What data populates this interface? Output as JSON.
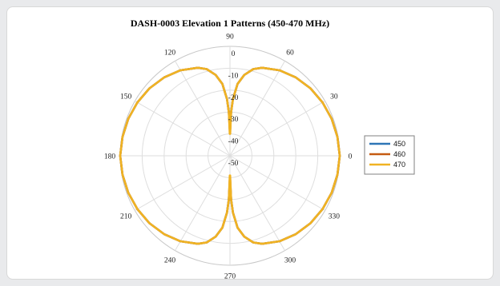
{
  "chart_data": {
    "type": "polar-line",
    "title": "DASH-0003 Elevation 1 Patterns (450-470 MHz)",
    "angle_ticks": [
      "0",
      "30",
      "60",
      "90",
      "120",
      "150",
      "180",
      "210",
      "240",
      "270",
      "300",
      "330"
    ],
    "radial_ticks": [
      "0",
      "-10",
      "-20",
      "-30",
      "-40",
      "-50"
    ],
    "rlim": [
      -50,
      0
    ],
    "grid": true,
    "legend_position": "right",
    "series": [
      {
        "name": "450",
        "color": "#2e75b6",
        "points": [
          [
            0,
            0
          ],
          [
            10,
            -0.3
          ],
          [
            20,
            -0.7
          ],
          [
            30,
            -1.3
          ],
          [
            40,
            -2.1
          ],
          [
            50,
            -3.3
          ],
          [
            60,
            -4.9
          ],
          [
            70,
            -7.2
          ],
          [
            75,
            -9
          ],
          [
            80,
            -12.5
          ],
          [
            84,
            -17
          ],
          [
            87,
            -24
          ],
          [
            88.5,
            -30
          ],
          [
            89.5,
            -36
          ],
          [
            90.5,
            -36
          ],
          [
            91.5,
            -30
          ],
          [
            93,
            -24
          ],
          [
            96,
            -17
          ],
          [
            100,
            -12.5
          ],
          [
            105,
            -9
          ],
          [
            110,
            -7.2
          ],
          [
            120,
            -4.9
          ],
          [
            130,
            -3.3
          ],
          [
            140,
            -2.1
          ],
          [
            150,
            -1.3
          ],
          [
            160,
            -0.7
          ],
          [
            170,
            -0.3
          ],
          [
            180,
            0
          ],
          [
            190,
            -0.3
          ],
          [
            200,
            -0.7
          ],
          [
            210,
            -1.3
          ],
          [
            220,
            -2.1
          ],
          [
            230,
            -3.3
          ],
          [
            240,
            -4.9
          ],
          [
            250,
            -7.2
          ],
          [
            255,
            -9
          ],
          [
            260,
            -12.5
          ],
          [
            264,
            -17
          ],
          [
            267,
            -24
          ],
          [
            268.5,
            -30
          ],
          [
            269.5,
            -37
          ],
          [
            270.5,
            -37
          ],
          [
            271.5,
            -30
          ],
          [
            273,
            -24
          ],
          [
            276,
            -17
          ],
          [
            280,
            -12.5
          ],
          [
            285,
            -9
          ],
          [
            290,
            -7.2
          ],
          [
            300,
            -4.9
          ],
          [
            310,
            -3.3
          ],
          [
            320,
            -2.1
          ],
          [
            330,
            -1.3
          ],
          [
            340,
            -0.7
          ],
          [
            350,
            -0.3
          ],
          [
            360,
            0
          ]
        ]
      },
      {
        "name": "460",
        "color": "#c55a11",
        "points": [
          [
            0,
            0
          ],
          [
            10,
            -0.3
          ],
          [
            20,
            -0.7
          ],
          [
            30,
            -1.3
          ],
          [
            40,
            -2.1
          ],
          [
            50,
            -3.3
          ],
          [
            60,
            -4.9
          ],
          [
            70,
            -7.2
          ],
          [
            75,
            -9
          ],
          [
            80,
            -12.5
          ],
          [
            84,
            -17
          ],
          [
            87,
            -24
          ],
          [
            88.5,
            -30
          ],
          [
            89.5,
            -38
          ],
          [
            90.5,
            -38
          ],
          [
            91.5,
            -30
          ],
          [
            93,
            -24
          ],
          [
            96,
            -17
          ],
          [
            100,
            -12.5
          ],
          [
            105,
            -9
          ],
          [
            110,
            -7.2
          ],
          [
            120,
            -4.9
          ],
          [
            130,
            -3.3
          ],
          [
            140,
            -2.1
          ],
          [
            150,
            -1.3
          ],
          [
            160,
            -0.7
          ],
          [
            170,
            -0.3
          ],
          [
            180,
            0
          ],
          [
            190,
            -0.3
          ],
          [
            200,
            -0.7
          ],
          [
            210,
            -1.3
          ],
          [
            220,
            -2.1
          ],
          [
            230,
            -3.3
          ],
          [
            240,
            -4.9
          ],
          [
            250,
            -7.2
          ],
          [
            255,
            -9
          ],
          [
            260,
            -12.5
          ],
          [
            264,
            -17
          ],
          [
            267,
            -24
          ],
          [
            268.5,
            -30
          ],
          [
            269.5,
            -39
          ],
          [
            270.5,
            -39
          ],
          [
            271.5,
            -30
          ],
          [
            273,
            -24
          ],
          [
            276,
            -17
          ],
          [
            280,
            -12.5
          ],
          [
            285,
            -9
          ],
          [
            290,
            -7.2
          ],
          [
            300,
            -4.9
          ],
          [
            310,
            -3.3
          ],
          [
            320,
            -2.1
          ],
          [
            330,
            -1.3
          ],
          [
            340,
            -0.7
          ],
          [
            350,
            -0.3
          ],
          [
            360,
            0
          ]
        ]
      },
      {
        "name": "470",
        "color": "#f0b323",
        "points": [
          [
            0,
            0
          ],
          [
            10,
            -0.3
          ],
          [
            20,
            -0.7
          ],
          [
            30,
            -1.3
          ],
          [
            40,
            -2.1
          ],
          [
            50,
            -3.3
          ],
          [
            60,
            -4.9
          ],
          [
            70,
            -7.2
          ],
          [
            75,
            -9
          ],
          [
            80,
            -12.5
          ],
          [
            84,
            -17
          ],
          [
            87,
            -24
          ],
          [
            88.5,
            -30
          ],
          [
            89.5,
            -40
          ],
          [
            90.5,
            -40
          ],
          [
            91.5,
            -30
          ],
          [
            93,
            -24
          ],
          [
            96,
            -17
          ],
          [
            100,
            -12.5
          ],
          [
            105,
            -9
          ],
          [
            110,
            -7.2
          ],
          [
            120,
            -4.9
          ],
          [
            130,
            -3.3
          ],
          [
            140,
            -2.1
          ],
          [
            150,
            -1.3
          ],
          [
            160,
            -0.7
          ],
          [
            170,
            -0.3
          ],
          [
            180,
            0
          ],
          [
            190,
            -0.3
          ],
          [
            200,
            -0.7
          ],
          [
            210,
            -1.3
          ],
          [
            220,
            -2.1
          ],
          [
            230,
            -3.3
          ],
          [
            240,
            -4.9
          ],
          [
            250,
            -7.2
          ],
          [
            255,
            -9
          ],
          [
            260,
            -12.5
          ],
          [
            264,
            -17
          ],
          [
            267,
            -24
          ],
          [
            268.5,
            -30
          ],
          [
            269.5,
            -41
          ],
          [
            270.5,
            -41
          ],
          [
            271.5,
            -30
          ],
          [
            273,
            -24
          ],
          [
            276,
            -17
          ],
          [
            280,
            -12.5
          ],
          [
            285,
            -9
          ],
          [
            290,
            -7.2
          ],
          [
            300,
            -4.9
          ],
          [
            310,
            -3.3
          ],
          [
            320,
            -2.1
          ],
          [
            330,
            -1.3
          ],
          [
            340,
            -0.7
          ],
          [
            350,
            -0.3
          ],
          [
            360,
            0
          ]
        ]
      }
    ]
  }
}
